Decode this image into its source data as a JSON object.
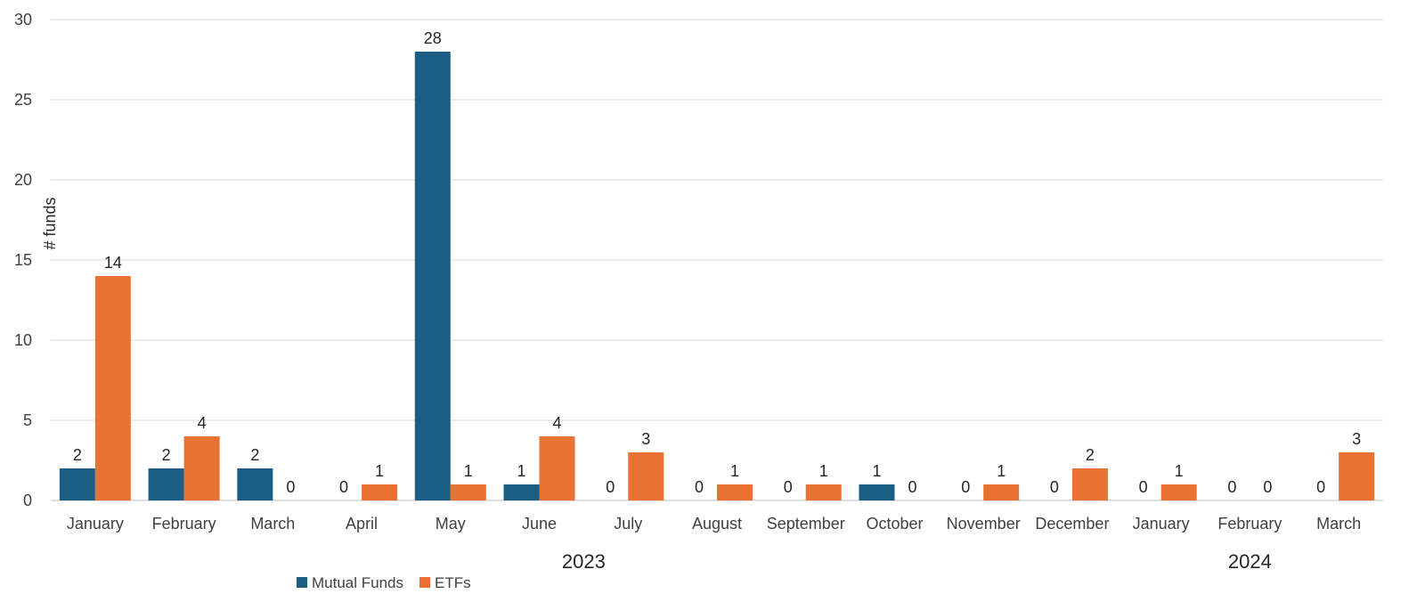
{
  "chart_data": {
    "type": "bar",
    "title": "",
    "xlabel": "",
    "ylabel": "# funds",
    "ylim": [
      0,
      30
    ],
    "yticks": [
      0,
      5,
      10,
      15,
      20,
      25,
      30
    ],
    "grid": true,
    "legend_position": "bottom-left",
    "categories": [
      "January",
      "February",
      "March",
      "April",
      "May",
      "June",
      "July",
      "August",
      "September",
      "October",
      "November",
      "December",
      "January",
      "February",
      "March"
    ],
    "category_groups": [
      {
        "label": "2023",
        "count": 12
      },
      {
        "label": "2024",
        "count": 3
      }
    ],
    "series": [
      {
        "name": "Mutual Funds",
        "color": "#1a5e84",
        "values": [
          2,
          2,
          2,
          0,
          28,
          1,
          0,
          0,
          0,
          1,
          0,
          0,
          0,
          0,
          0
        ]
      },
      {
        "name": "ETFs",
        "color": "#e97132",
        "values": [
          14,
          4,
          0,
          1,
          1,
          4,
          3,
          1,
          1,
          0,
          1,
          2,
          1,
          0,
          3
        ]
      }
    ],
    "data_labels": true
  }
}
